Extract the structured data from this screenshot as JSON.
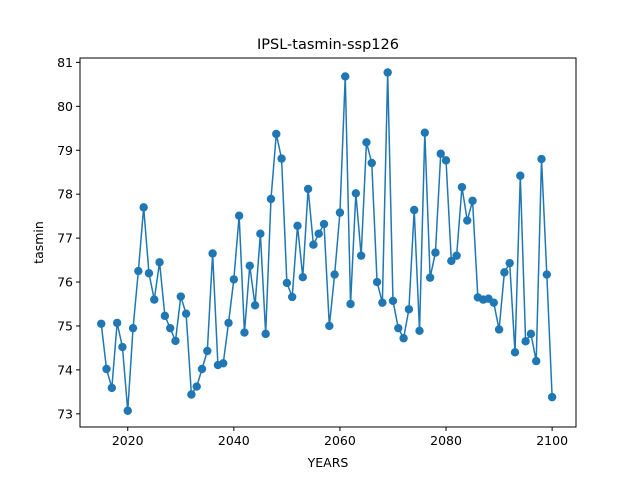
{
  "chart_data": {
    "type": "line",
    "title": "IPSL-tasmin-ssp126",
    "xlabel": "YEARS",
    "ylabel": "tasmin",
    "xlim": [
      2011,
      2104.5
    ],
    "ylim": [
      72.7,
      81.1
    ],
    "xticks": [
      2020,
      2040,
      2060,
      2080,
      2100
    ],
    "yticks": [
      73,
      74,
      75,
      76,
      77,
      78,
      79,
      80,
      81
    ],
    "grid": false,
    "series": [
      {
        "color": "#1f77b4",
        "marker": "circle",
        "x": [
          2015,
          2016,
          2017,
          2018,
          2019,
          2020,
          2021,
          2022,
          2023,
          2024,
          2025,
          2026,
          2027,
          2028,
          2029,
          2030,
          2031,
          2032,
          2033,
          2034,
          2035,
          2036,
          2037,
          2038,
          2039,
          2040,
          2041,
          2042,
          2043,
          2044,
          2045,
          2046,
          2047,
          2048,
          2049,
          2050,
          2051,
          2052,
          2053,
          2054,
          2055,
          2056,
          2057,
          2058,
          2059,
          2060,
          2061,
          2062,
          2063,
          2064,
          2065,
          2066,
          2067,
          2068,
          2069,
          2070,
          2071,
          2072,
          2073,
          2074,
          2075,
          2076,
          2077,
          2078,
          2079,
          2080,
          2081,
          2082,
          2083,
          2084,
          2085,
          2086,
          2087,
          2088,
          2089,
          2090,
          2091,
          2092,
          2093,
          2094,
          2095,
          2096,
          2097,
          2098,
          2099,
          2100
        ],
        "y": [
          75.05,
          74.02,
          73.59,
          75.07,
          74.52,
          73.07,
          74.95,
          76.25,
          77.7,
          76.2,
          75.6,
          76.45,
          75.23,
          74.95,
          74.66,
          75.67,
          75.28,
          73.44,
          73.62,
          74.02,
          74.43,
          76.65,
          74.11,
          74.15,
          75.07,
          76.06,
          77.51,
          74.85,
          76.37,
          75.47,
          77.1,
          74.82,
          77.89,
          79.37,
          78.81,
          75.98,
          75.66,
          77.28,
          76.11,
          78.12,
          76.85,
          77.1,
          77.32,
          75.0,
          76.17,
          77.58,
          80.68,
          75.5,
          78.02,
          76.6,
          79.18,
          78.71,
          76.0,
          75.53,
          80.77,
          75.57,
          74.95,
          74.72,
          75.38,
          77.64,
          74.89,
          79.4,
          76.1,
          76.67,
          78.92,
          78.77,
          76.48,
          76.6,
          78.16,
          77.4,
          77.85,
          75.65,
          75.6,
          75.62,
          75.53,
          74.92,
          76.22,
          76.43,
          74.4,
          78.42,
          74.65,
          74.82,
          74.2,
          78.8,
          76.17,
          73.38
        ]
      }
    ]
  }
}
